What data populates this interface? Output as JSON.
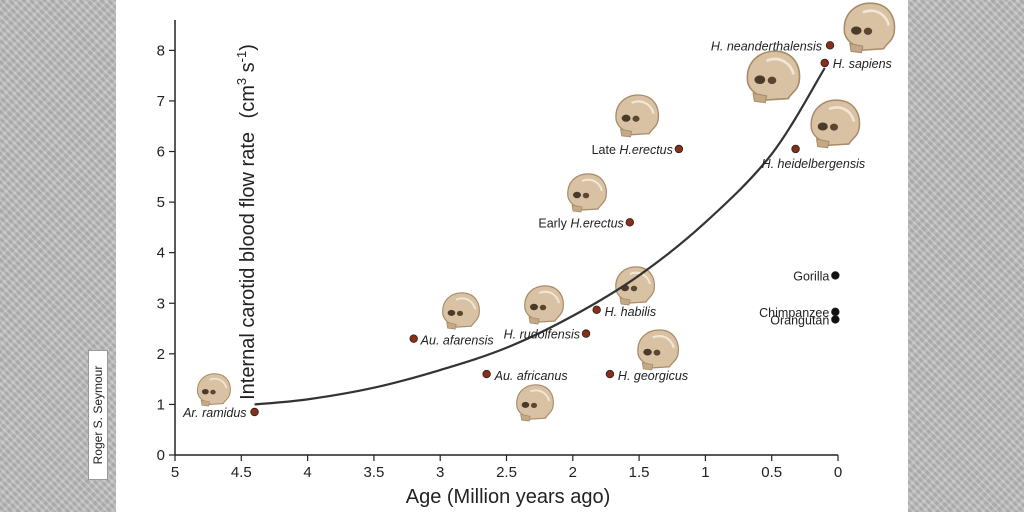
{
  "credit": "Roger S. Seymour",
  "chart_data": {
    "type": "scatter",
    "xlabel": "Age  (Million years ago)",
    "ylabel": "Internal carotid blood flow rate",
    "ylabel_unit": "(cm",
    "ylabel_sup1": "3",
    "ylabel_mid": " s",
    "ylabel_sup2": "-1",
    "ylabel_end": ")",
    "x_reversed": true,
    "xlim": [
      5,
      0
    ],
    "ylim": [
      0,
      8.6
    ],
    "x_ticks": [
      {
        "v": 5,
        "label": "5"
      },
      {
        "v": 4.5,
        "label": "4.5"
      },
      {
        "v": 4,
        "label": "4"
      },
      {
        "v": 3.5,
        "label": "3.5"
      },
      {
        "v": 3,
        "label": "3"
      },
      {
        "v": 2.5,
        "label": "2.5"
      },
      {
        "v": 2,
        "label": "2"
      },
      {
        "v": 1.5,
        "label": "1.5"
      },
      {
        "v": 1,
        "label": "1"
      },
      {
        "v": 0.5,
        "label": "0.5"
      },
      {
        "v": 0,
        "label": "0"
      }
    ],
    "y_ticks": [
      {
        "v": 0,
        "label": "0"
      },
      {
        "v": 1,
        "label": "1"
      },
      {
        "v": 2,
        "label": "2"
      },
      {
        "v": 3,
        "label": "3"
      },
      {
        "v": 4,
        "label": "4"
      },
      {
        "v": 5,
        "label": "5"
      },
      {
        "v": 6,
        "label": "6"
      },
      {
        "v": 7,
        "label": "7"
      },
      {
        "v": 8,
        "label": "8"
      }
    ],
    "colors": {
      "hominin": "#8b2e16",
      "ape": "#111111",
      "curve": "#333333",
      "skull": "#d9c2a3",
      "skull_shade": "#a88b68"
    },
    "points": [
      {
        "id": "ar-ramidus",
        "label": "Ar. ramidus",
        "italic": true,
        "x": 4.4,
        "y": 0.85,
        "group": "hominin"
      },
      {
        "id": "au-afarensis",
        "label": "Au. afarensis",
        "italic": true,
        "x": 3.2,
        "y": 2.3,
        "group": "hominin"
      },
      {
        "id": "au-africanus",
        "label": "Au. africanus",
        "italic": true,
        "x": 2.65,
        "y": 1.6,
        "group": "hominin"
      },
      {
        "id": "h-rudolfensis",
        "label": "H. rudolfensis",
        "italic": true,
        "x": 1.9,
        "y": 2.4,
        "group": "hominin"
      },
      {
        "id": "h-habilis",
        "label": "H. habilis",
        "italic": true,
        "x": 1.82,
        "y": 2.87,
        "group": "hominin"
      },
      {
        "id": "h-georgicus",
        "label": "H. georgicus",
        "italic": true,
        "x": 1.72,
        "y": 1.6,
        "group": "hominin"
      },
      {
        "id": "early-h-erectus",
        "label_prefix": "Early ",
        "label": "H.erectus",
        "italic": true,
        "x": 1.57,
        "y": 4.6,
        "group": "hominin"
      },
      {
        "id": "late-h-erectus",
        "label_prefix": "Late ",
        "label": "H.erectus",
        "italic": true,
        "x": 1.2,
        "y": 6.05,
        "group": "hominin"
      },
      {
        "id": "h-heidelbergensis",
        "label": "H. heidelbergensis",
        "italic": true,
        "x": 0.32,
        "y": 6.05,
        "group": "hominin"
      },
      {
        "id": "h-neanderthalensis",
        "label": "H. neanderthalensis",
        "italic": true,
        "x": 0.06,
        "y": 8.1,
        "group": "hominin"
      },
      {
        "id": "h-sapiens",
        "label": "H. sapiens",
        "italic": true,
        "x": 0.1,
        "y": 7.75,
        "group": "hominin"
      },
      {
        "id": "gorilla",
        "label": "Gorilla",
        "italic": false,
        "x": 0.02,
        "y": 3.55,
        "group": "ape"
      },
      {
        "id": "chimpanzee",
        "label": "Chimpanzee",
        "italic": false,
        "x": 0.02,
        "y": 2.83,
        "group": "ape"
      },
      {
        "id": "orangutan",
        "label": "Orangutan",
        "italic": false,
        "x": 0.02,
        "y": 2.68,
        "group": "ape"
      }
    ],
    "trend_curve": [
      [
        4.4,
        1.0
      ],
      [
        4.0,
        1.1
      ],
      [
        3.5,
        1.33
      ],
      [
        3.0,
        1.68
      ],
      [
        2.5,
        2.12
      ],
      [
        2.0,
        2.75
      ],
      [
        1.5,
        3.55
      ],
      [
        1.0,
        4.6
      ],
      [
        0.5,
        5.95
      ],
      [
        0.1,
        7.65
      ]
    ]
  }
}
